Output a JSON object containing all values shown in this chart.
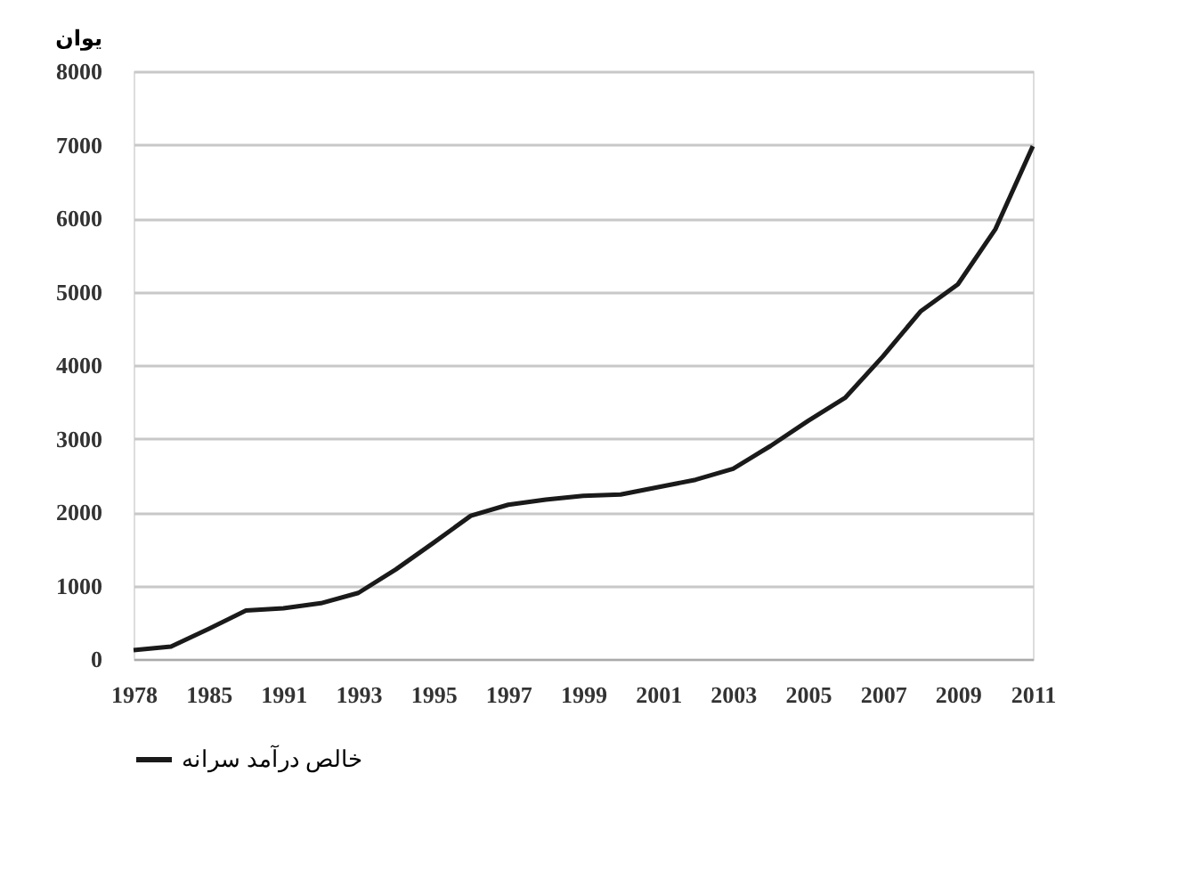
{
  "chart_data": {
    "type": "line",
    "ylabel": "یوان",
    "categories": [
      "1978",
      null,
      "1985",
      null,
      "1991",
      null,
      "1993",
      null,
      "1995",
      null,
      "1997",
      null,
      "1999",
      null,
      "2001",
      null,
      "2003",
      null,
      "2005",
      null,
      "2007",
      null,
      "2009",
      null,
      "2011"
    ],
    "series": [
      {
        "name": "خالص درآمد سرانه",
        "color": "#1a1a1a",
        "values": [
          120,
          170,
          410,
          660,
          690,
          760,
          900,
          1220,
          1580,
          1950,
          2100,
          2170,
          2220,
          2240,
          2340,
          2440,
          2590,
          2900,
          3240,
          3560,
          4120,
          4730,
          5100,
          5850,
          6980
        ]
      }
    ],
    "ylim": [
      0,
      8000
    ],
    "yticks": [
      0,
      1000,
      2000,
      3000,
      4000,
      5000,
      6000,
      7000,
      8000
    ],
    "grid": "y",
    "legend": "bottom",
    "marker": "none",
    "line_style": "solid"
  }
}
